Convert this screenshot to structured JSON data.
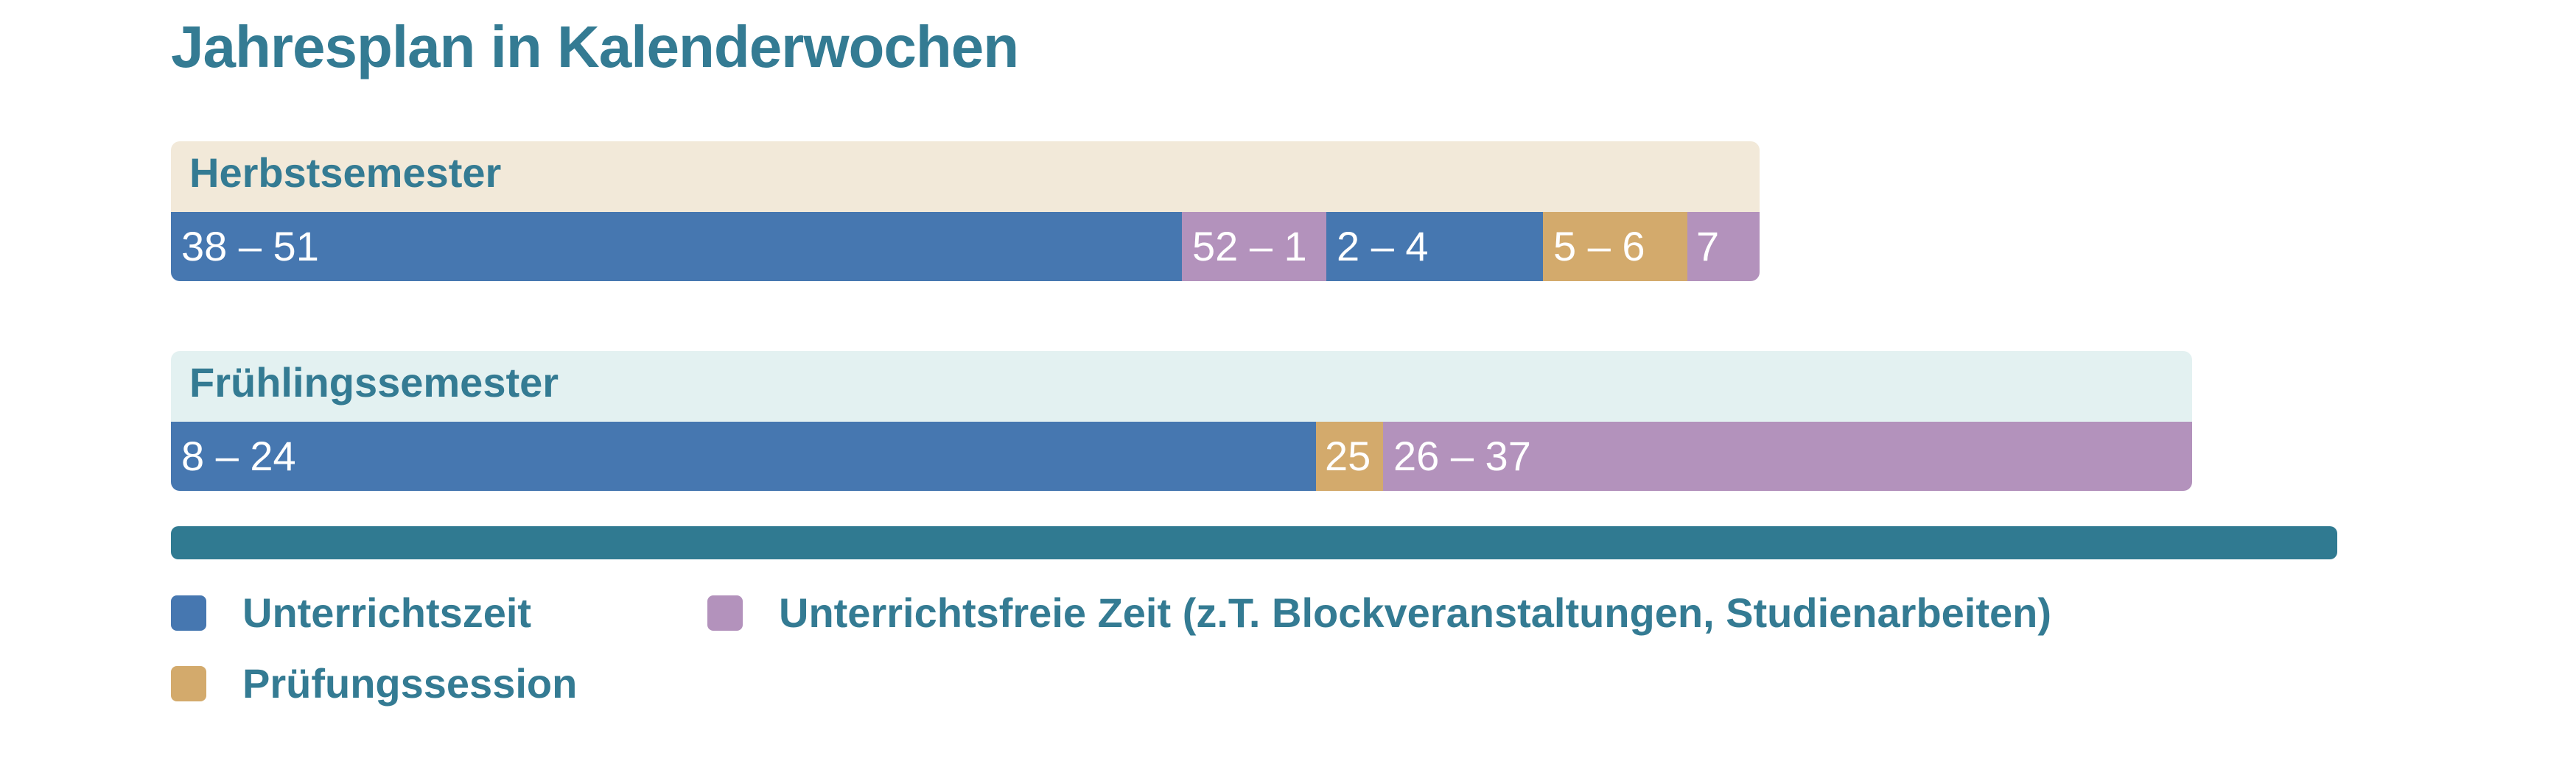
{
  "title": "Jahresplan in Kalenderwochen",
  "colors": {
    "teaching": "#4677b0",
    "exam": "#d3aa6c",
    "free": "#b392bc",
    "title_text": "#347b93",
    "timeline": "#307a91",
    "herbst_header_bg": "#f2e9d9",
    "fruehling_header_bg": "#e3f1f1"
  },
  "semesters": [
    {
      "name": "Herbstsemester",
      "segments": [
        {
          "label": "38 – 51",
          "type": "teaching",
          "weeks": 14
        },
        {
          "label": "52 – 1",
          "type": "free",
          "weeks": 2
        },
        {
          "label": "2 – 4",
          "type": "teaching",
          "weeks": 3
        },
        {
          "label": "5 – 6",
          "type": "exam",
          "weeks": 2
        },
        {
          "label": "7",
          "type": "free",
          "weeks": 1
        }
      ]
    },
    {
      "name": "Frühlingssemester",
      "segments": [
        {
          "label": "8 – 24",
          "type": "teaching",
          "weeks": 17
        },
        {
          "label": "25",
          "type": "exam",
          "weeks": 1
        },
        {
          "label": "26 – 37",
          "type": "free",
          "weeks": 12
        }
      ]
    }
  ],
  "legend": {
    "teaching": "Unterrichtszeit",
    "free": "Unterrichtsfreie Zeit (z.T. Blockveranstaltungen, Studienarbeiten)",
    "exam": "Prüfungssession"
  }
}
